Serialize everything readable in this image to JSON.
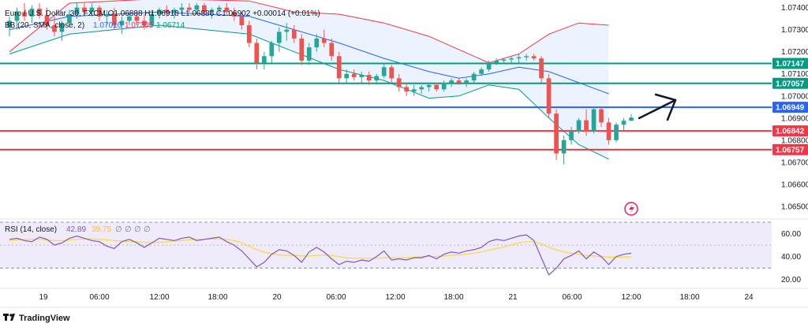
{
  "colors": {
    "up": "#26a69a",
    "down": "#ef5350",
    "bb_basis": "#2962ff",
    "bb_upper": "#f23645",
    "bb_lower": "#089981",
    "bb_fill": "#e3effd",
    "level_green": "#089981",
    "level_red": "#f23645",
    "level_blue": "#2962ff",
    "rsi_line": "#7e57c2",
    "rsi_ma": "#fdd835",
    "rsi_band": "#f0ebfa",
    "arrow": "#131722"
  },
  "legend": {
    "line1": "Euro / U.S. Dollar, 30, FXCM O1.06888 H1.06918 L1.06886 C1.06902 +0.00014 (+0.01%)",
    "line2_label": "BB (20, SMA, close, 2)",
    "line2_basis": "1.07010",
    "line2_upper": "1.07305",
    "line2_lower": "1.06714"
  },
  "rsi_legend": {
    "label": "RSI (14, close)",
    "value": "42.89",
    "ma_value": "39.75",
    "extras": [
      "∅",
      "∅",
      "∅",
      "∅"
    ]
  },
  "chart_data": {
    "type": "candlestick",
    "symbol": "Euro / U.S. Dollar",
    "timeframe": "30",
    "ylim": [
      1.0645,
      1.0742
    ],
    "y_ticks": [
      "1.07400",
      "1.07300",
      "1.07200",
      "1.07100",
      "1.07000",
      "1.06900",
      "1.06800",
      "1.06700",
      "1.06600",
      "1.06500"
    ],
    "x_ticks": [
      "19",
      "06:00",
      "12:00",
      "18:00",
      "20",
      "06:00",
      "12:00",
      "18:00",
      "21",
      "06:00",
      "12:00",
      "18:00",
      "24"
    ],
    "candles": [
      {
        "o": 1.0731,
        "h": 1.0736,
        "l": 1.0727,
        "c": 1.0734
      },
      {
        "o": 1.0734,
        "h": 1.074,
        "l": 1.073,
        "c": 1.0738
      },
      {
        "o": 1.0738,
        "h": 1.0742,
        "l": 1.0734,
        "c": 1.0736
      },
      {
        "o": 1.0736,
        "h": 1.0741,
        "l": 1.0733,
        "c": 1.07395
      },
      {
        "o": 1.07395,
        "h": 1.0742,
        "l": 1.0735,
        "c": 1.07365
      },
      {
        "o": 1.07365,
        "h": 1.074,
        "l": 1.073,
        "c": 1.0732
      },
      {
        "o": 1.0732,
        "h": 1.0736,
        "l": 1.0727,
        "c": 1.0729
      },
      {
        "o": 1.0729,
        "h": 1.0734,
        "l": 1.0725,
        "c": 1.0733
      },
      {
        "o": 1.0733,
        "h": 1.0739,
        "l": 1.0731,
        "c": 1.0737
      },
      {
        "o": 1.0737,
        "h": 1.0742,
        "l": 1.0735,
        "c": 1.074
      },
      {
        "o": 1.074,
        "h": 1.0742,
        "l": 1.0736,
        "c": 1.0738
      },
      {
        "o": 1.0738,
        "h": 1.0742,
        "l": 1.0736,
        "c": 1.074
      },
      {
        "o": 1.074,
        "h": 1.0741,
        "l": 1.0734,
        "c": 1.0736
      },
      {
        "o": 1.0736,
        "h": 1.0739,
        "l": 1.0732,
        "c": 1.0737
      },
      {
        "o": 1.0737,
        "h": 1.074,
        "l": 1.073,
        "c": 1.0732
      },
      {
        "o": 1.0732,
        "h": 1.0736,
        "l": 1.0728,
        "c": 1.0734
      },
      {
        "o": 1.0734,
        "h": 1.0738,
        "l": 1.0732,
        "c": 1.0736
      },
      {
        "o": 1.0736,
        "h": 1.0738,
        "l": 1.0732,
        "c": 1.0734
      },
      {
        "o": 1.0734,
        "h": 1.0737,
        "l": 1.073,
        "c": 1.0732
      },
      {
        "o": 1.0732,
        "h": 1.0738,
        "l": 1.0731,
        "c": 1.0737
      },
      {
        "o": 1.0737,
        "h": 1.074,
        "l": 1.0735,
        "c": 1.0739
      },
      {
        "o": 1.0739,
        "h": 1.0741,
        "l": 1.0736,
        "c": 1.0738
      },
      {
        "o": 1.0738,
        "h": 1.074,
        "l": 1.0735,
        "c": 1.0739
      },
      {
        "o": 1.0739,
        "h": 1.0742,
        "l": 1.0737,
        "c": 1.074
      },
      {
        "o": 1.074,
        "h": 1.0742,
        "l": 1.0738,
        "c": 1.0739
      },
      {
        "o": 1.0739,
        "h": 1.0742,
        "l": 1.0737,
        "c": 1.0741
      },
      {
        "o": 1.0741,
        "h": 1.0742,
        "l": 1.0736,
        "c": 1.0738
      },
      {
        "o": 1.0738,
        "h": 1.074,
        "l": 1.0735,
        "c": 1.0739
      },
      {
        "o": 1.0739,
        "h": 1.0741,
        "l": 1.0737,
        "c": 1.074
      },
      {
        "o": 1.074,
        "h": 1.0742,
        "l": 1.0737,
        "c": 1.0738
      },
      {
        "o": 1.0738,
        "h": 1.074,
        "l": 1.0734,
        "c": 1.0736
      },
      {
        "o": 1.0736,
        "h": 1.0738,
        "l": 1.073,
        "c": 1.0732
      },
      {
        "o": 1.0732,
        "h": 1.0734,
        "l": 1.0722,
        "c": 1.0724
      },
      {
        "o": 1.0724,
        "h": 1.0726,
        "l": 1.0712,
        "c": 1.0715
      },
      {
        "o": 1.0715,
        "h": 1.072,
        "l": 1.0712,
        "c": 1.0718
      },
      {
        "o": 1.0718,
        "h": 1.0725,
        "l": 1.0715,
        "c": 1.0724
      },
      {
        "o": 1.0724,
        "h": 1.0731,
        "l": 1.072,
        "c": 1.0729
      },
      {
        "o": 1.0729,
        "h": 1.0733,
        "l": 1.0725,
        "c": 1.073
      },
      {
        "o": 1.073,
        "h": 1.0732,
        "l": 1.0724,
        "c": 1.0726
      },
      {
        "o": 1.0726,
        "h": 1.0728,
        "l": 1.0714,
        "c": 1.0716
      },
      {
        "o": 1.0716,
        "h": 1.0724,
        "l": 1.0714,
        "c": 1.0722
      },
      {
        "o": 1.0722,
        "h": 1.0728,
        "l": 1.072,
        "c": 1.0726
      },
      {
        "o": 1.0726,
        "h": 1.073,
        "l": 1.0722,
        "c": 1.0724
      },
      {
        "o": 1.0724,
        "h": 1.0726,
        "l": 1.0716,
        "c": 1.0718
      },
      {
        "o": 1.0718,
        "h": 1.072,
        "l": 1.0706,
        "c": 1.0708
      },
      {
        "o": 1.0708,
        "h": 1.0712,
        "l": 1.0706,
        "c": 1.071
      },
      {
        "o": 1.071,
        "h": 1.0712,
        "l": 1.0707,
        "c": 1.07085
      },
      {
        "o": 1.07085,
        "h": 1.0711,
        "l": 1.0706,
        "c": 1.07095
      },
      {
        "o": 1.07095,
        "h": 1.0711,
        "l": 1.0705,
        "c": 1.0707
      },
      {
        "o": 1.0707,
        "h": 1.071,
        "l": 1.0706,
        "c": 1.0709
      },
      {
        "o": 1.0709,
        "h": 1.0715,
        "l": 1.0708,
        "c": 1.0713
      },
      {
        "o": 1.0713,
        "h": 1.0714,
        "l": 1.0706,
        "c": 1.0708
      },
      {
        "o": 1.0708,
        "h": 1.071,
        "l": 1.0702,
        "c": 1.0704
      },
      {
        "o": 1.0704,
        "h": 1.0706,
        "l": 1.07,
        "c": 1.0702
      },
      {
        "o": 1.0702,
        "h": 1.0705,
        "l": 1.07,
        "c": 1.0703
      },
      {
        "o": 1.0703,
        "h": 1.0705,
        "l": 1.0701,
        "c": 1.0704
      },
      {
        "o": 1.0704,
        "h": 1.0706,
        "l": 1.0702,
        "c": 1.0705
      },
      {
        "o": 1.0705,
        "h": 1.0706,
        "l": 1.0702,
        "c": 1.0703
      },
      {
        "o": 1.0703,
        "h": 1.0707,
        "l": 1.0702,
        "c": 1.0706
      },
      {
        "o": 1.0706,
        "h": 1.0708,
        "l": 1.0704,
        "c": 1.0707
      },
      {
        "o": 1.0707,
        "h": 1.0708,
        "l": 1.0705,
        "c": 1.0706
      },
      {
        "o": 1.0706,
        "h": 1.0708,
        "l": 1.0704,
        "c": 1.0707
      },
      {
        "o": 1.0707,
        "h": 1.0711,
        "l": 1.0706,
        "c": 1.071
      },
      {
        "o": 1.071,
        "h": 1.0713,
        "l": 1.0709,
        "c": 1.0712
      },
      {
        "o": 1.0712,
        "h": 1.0716,
        "l": 1.0711,
        "c": 1.0715
      },
      {
        "o": 1.0715,
        "h": 1.0717,
        "l": 1.0714,
        "c": 1.0716
      },
      {
        "o": 1.0716,
        "h": 1.0717,
        "l": 1.0715,
        "c": 1.07165
      },
      {
        "o": 1.07165,
        "h": 1.0718,
        "l": 1.0715,
        "c": 1.0717
      },
      {
        "o": 1.0717,
        "h": 1.0719,
        "l": 1.0715,
        "c": 1.07175
      },
      {
        "o": 1.07175,
        "h": 1.0719,
        "l": 1.0716,
        "c": 1.0718
      },
      {
        "o": 1.0718,
        "h": 1.0719,
        "l": 1.0716,
        "c": 1.0717
      },
      {
        "o": 1.0717,
        "h": 1.0718,
        "l": 1.0706,
        "c": 1.0708
      },
      {
        "o": 1.0708,
        "h": 1.071,
        "l": 1.069,
        "c": 1.0692
      },
      {
        "o": 1.0692,
        "h": 1.0694,
        "l": 1.0671,
        "c": 1.0674
      },
      {
        "o": 1.0674,
        "h": 1.0682,
        "l": 1.0669,
        "c": 1.068
      },
      {
        "o": 1.068,
        "h": 1.0686,
        "l": 1.0678,
        "c": 1.0684
      },
      {
        "o": 1.0684,
        "h": 1.069,
        "l": 1.0683,
        "c": 1.0689
      },
      {
        "o": 1.0689,
        "h": 1.0694,
        "l": 1.0682,
        "c": 1.0684
      },
      {
        "o": 1.0684,
        "h": 1.0695,
        "l": 1.0683,
        "c": 1.0694
      },
      {
        "o": 1.0694,
        "h": 1.0695,
        "l": 1.0686,
        "c": 1.0688
      },
      {
        "o": 1.0688,
        "h": 1.069,
        "l": 1.0678,
        "c": 1.068
      },
      {
        "o": 1.068,
        "h": 1.0688,
        "l": 1.0679,
        "c": 1.0687
      },
      {
        "o": 1.0687,
        "h": 1.069,
        "l": 1.0684,
        "c": 1.06888
      },
      {
        "o": 1.06888,
        "h": 1.06918,
        "l": 1.06886,
        "c": 1.06902
      }
    ],
    "bollinger": {
      "upper": [
        [
          0,
          1.072
        ],
        [
          8,
          1.0742
        ],
        [
          20,
          1.0744
        ],
        [
          32,
          1.0743
        ],
        [
          38,
          1.0738
        ],
        [
          44,
          1.0737
        ],
        [
          50,
          1.0733
        ],
        [
          56,
          1.0727
        ],
        [
          60,
          1.0721
        ],
        [
          64,
          1.0715
        ],
        [
          68,
          1.0719
        ],
        [
          72,
          1.0728
        ],
        [
          76,
          1.0733
        ],
        [
          80,
          1.0732
        ]
      ],
      "basis": [
        [
          0,
          1.073
        ],
        [
          8,
          1.0736
        ],
        [
          20,
          1.0738
        ],
        [
          32,
          1.0736
        ],
        [
          38,
          1.073
        ],
        [
          44,
          1.0724
        ],
        [
          50,
          1.0717
        ],
        [
          56,
          1.0711
        ],
        [
          60,
          1.0708
        ],
        [
          64,
          1.071
        ],
        [
          68,
          1.0713
        ],
        [
          72,
          1.0711
        ],
        [
          76,
          1.0706
        ],
        [
          80,
          1.0701
        ]
      ],
      "lower": [
        [
          0,
          1.0719
        ],
        [
          8,
          1.0728
        ],
        [
          20,
          1.0732
        ],
        [
          32,
          1.0728
        ],
        [
          38,
          1.072
        ],
        [
          44,
          1.0712
        ],
        [
          50,
          1.0707
        ],
        [
          56,
          1.0699
        ],
        [
          60,
          1.07
        ],
        [
          64,
          1.0705
        ],
        [
          68,
          1.0703
        ],
        [
          72,
          1.069
        ],
        [
          76,
          1.0678
        ],
        [
          80,
          1.06714
        ]
      ]
    },
    "levels": [
      {
        "price": 1.07147,
        "label": "1.07147",
        "color": "#089981"
      },
      {
        "price": 1.07057,
        "label": "1.07057",
        "color": "#089981"
      },
      {
        "price": 1.06949,
        "label": "1.06949",
        "color": "#2962ff"
      },
      {
        "price": 1.06842,
        "label": "1.06842",
        "color": "#f23645"
      },
      {
        "price": 1.06757,
        "label": "1.06757",
        "color": "#f23645"
      }
    ],
    "rsi": {
      "ylim": [
        15,
        70
      ],
      "band": [
        30,
        70
      ],
      "y_ticks": [
        "60.00",
        "40.00",
        "20.00"
      ],
      "values": [
        55,
        56,
        54,
        53,
        57,
        55,
        50,
        52,
        56,
        58,
        56,
        54,
        53,
        49,
        47,
        53,
        55,
        52,
        48,
        52,
        56,
        55,
        54,
        56,
        57,
        54,
        55,
        56,
        57,
        53,
        50,
        45,
        38,
        31,
        35,
        42,
        46,
        45,
        41,
        35,
        44,
        48,
        44,
        38,
        33,
        36,
        35,
        37,
        36,
        40,
        45,
        37,
        38,
        37,
        39,
        39,
        41,
        38,
        42,
        44,
        43,
        45,
        46,
        48,
        53,
        55,
        54,
        56,
        58,
        59,
        54,
        39,
        24,
        30,
        38,
        41,
        45,
        38,
        44,
        40,
        33,
        40,
        42,
        42.89
      ],
      "ma": [
        54,
        54.5,
        55,
        55,
        55,
        54.5,
        54,
        54,
        54.5,
        55,
        55.5,
        55.5,
        55,
        54.5,
        54,
        53.5,
        53,
        53,
        52.5,
        52,
        52.5,
        53,
        53.5,
        54,
        54.5,
        55,
        55,
        55.5,
        55.5,
        55,
        54,
        52,
        49,
        46,
        44,
        42.5,
        41.5,
        41,
        41,
        40.5,
        40.5,
        41,
        41.5,
        41,
        40,
        39,
        38.5,
        38.5,
        38.5,
        38.5,
        39,
        39,
        39,
        39,
        39.5,
        40,
        40,
        40,
        40.5,
        41,
        41.5,
        42,
        43,
        44,
        45.5,
        47,
        48.5,
        50,
        52,
        53,
        53,
        51,
        48,
        46,
        44,
        43,
        42,
        41,
        40.5,
        40,
        39.5,
        39.5,
        39.7,
        39.75
      ]
    }
  },
  "annotations": {
    "arrow_direction": "up-right"
  },
  "branding": {
    "text": "TradingView"
  }
}
